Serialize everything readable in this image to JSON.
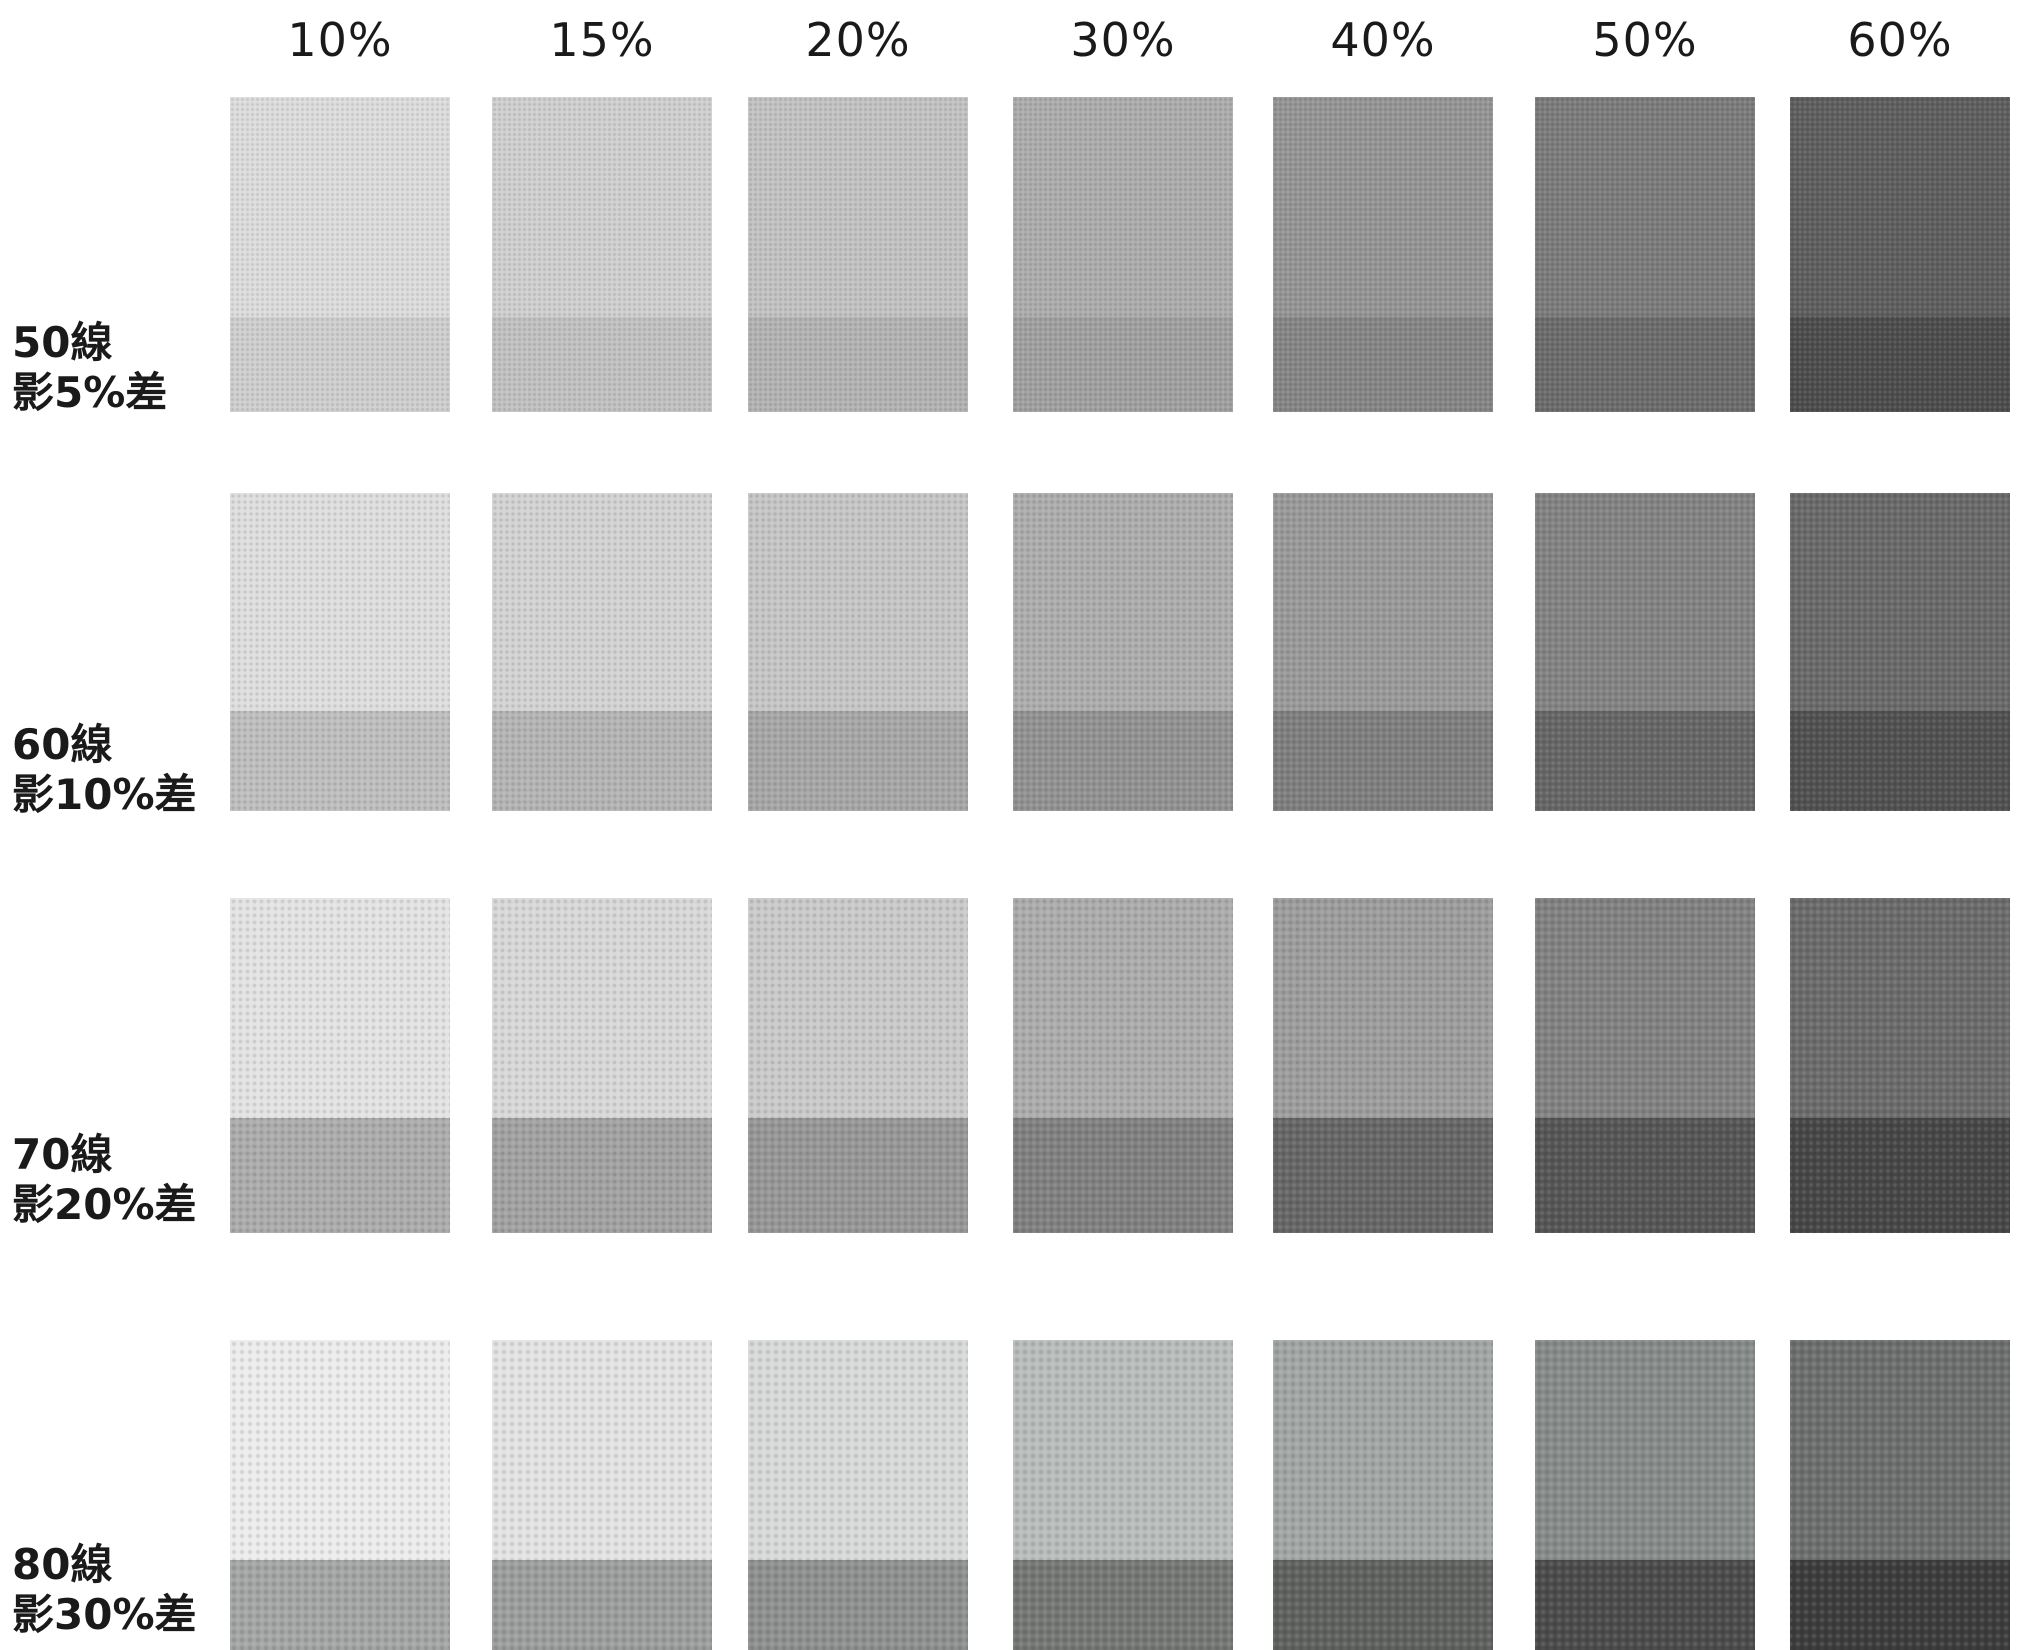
{
  "columns": [
    "10%",
    "15%",
    "20%",
    "30%",
    "40%",
    "50%",
    "60%"
  ],
  "rows": [
    {
      "lines": "50線",
      "shade": "影5%差"
    },
    {
      "lines": "60線",
      "shade": "影10%差"
    },
    {
      "lines": "70線",
      "shade": "影20%差"
    },
    {
      "lines": "80線",
      "shade": "影30%差"
    }
  ],
  "swatch_colors": [
    {
      "upper": [
        "#dcdcdc",
        "#cfcfcf",
        "#c2c2c2",
        "#acacac",
        "#959595",
        "#7c7c7c",
        "#5f5f5f"
      ],
      "lower": [
        "#cecece",
        "#c1c1c1",
        "#b3b3b3",
        "#a0a0a0",
        "#868686",
        "#6c6c6c",
        "#4d4d4d"
      ]
    },
    {
      "upper": [
        "#dedede",
        "#d3d3d3",
        "#c6c6c6",
        "#adadad",
        "#9a9a9a",
        "#838383",
        "#6a6a6a"
      ],
      "lower": [
        "#bebebe",
        "#b4b4b4",
        "#a7a7a7",
        "#929292",
        "#7f7f7f",
        "#666666",
        "#515151"
      ]
    },
    {
      "upper": [
        "#e3e3e3",
        "#d8d8d8",
        "#cacaca",
        "#acacac",
        "#9d9d9d",
        "#828282",
        "#6c6c6c"
      ],
      "lower": [
        "#acacac",
        "#a2a2a2",
        "#979797",
        "#818181",
        "#676767",
        "#565656",
        "#474747"
      ]
    },
    {
      "upper": [
        "#ececec",
        "#e3e3e3",
        "#d8dada",
        "#b9bdbb",
        "#a2a6a4",
        "#878b89",
        "#6d706e"
      ],
      "lower": [
        "#a3a6a4",
        "#9b9e9c",
        "#8e918f",
        "#767876",
        "#606260",
        "#4c4c4c",
        "#3d3d3d"
      ]
    }
  ]
}
